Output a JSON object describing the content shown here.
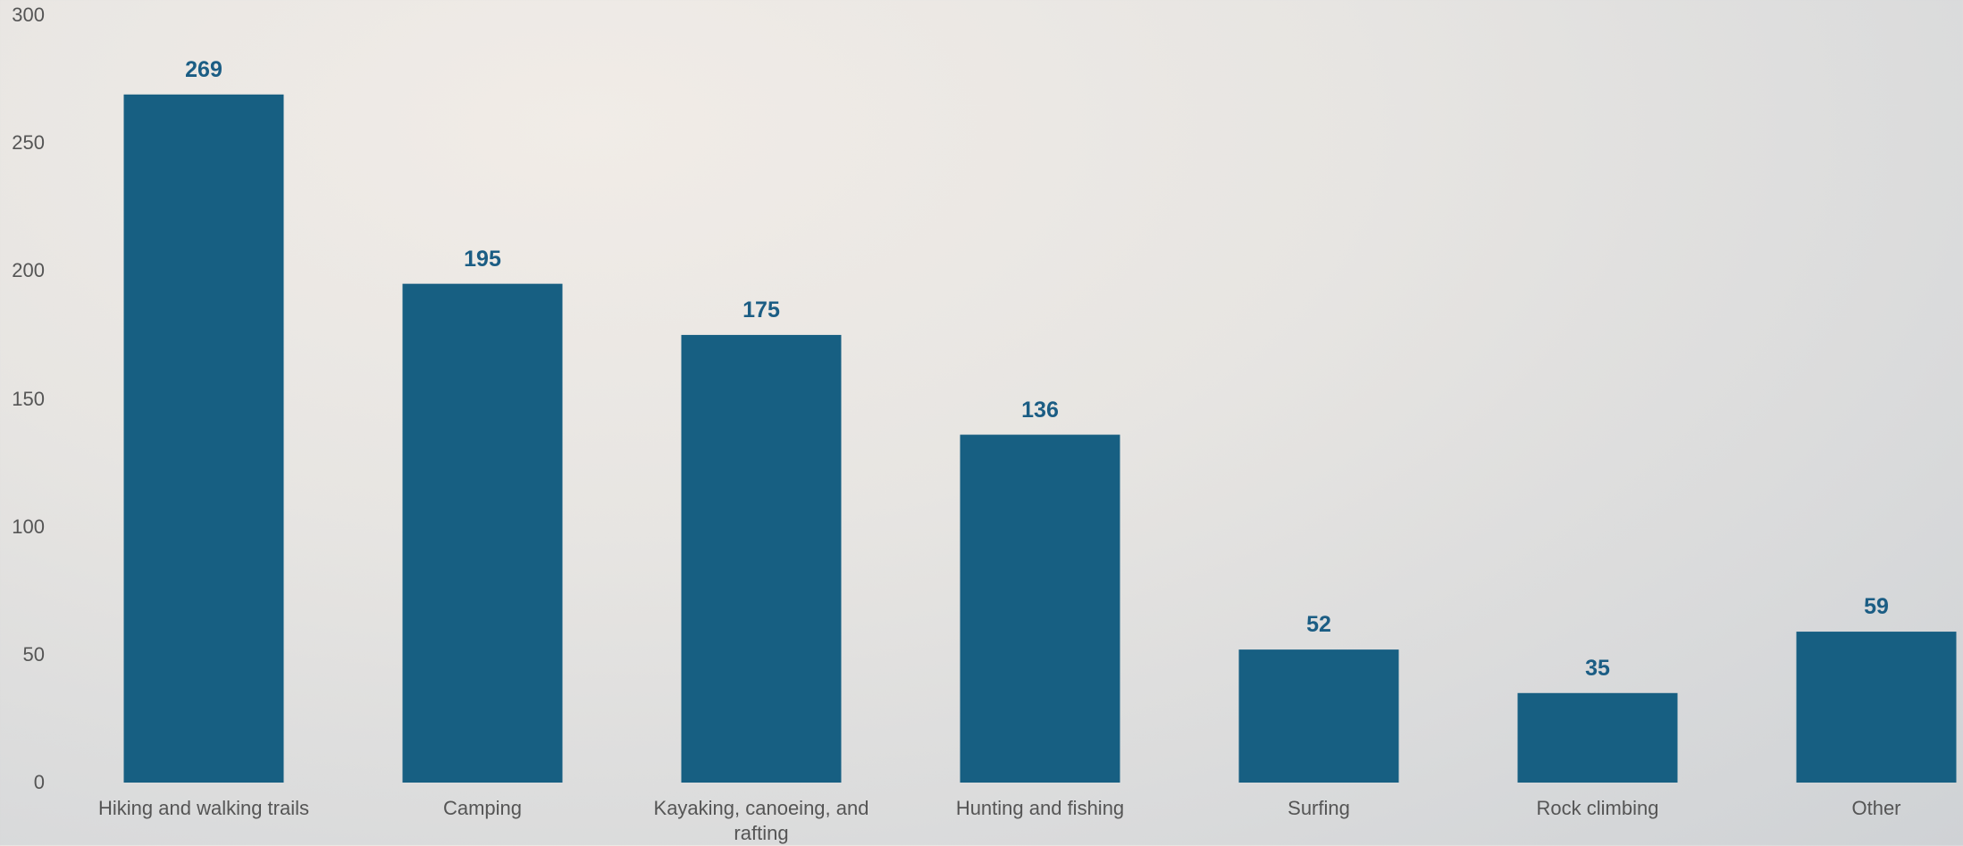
{
  "chart_data": {
    "type": "bar",
    "categories": [
      "Hiking and walking trails",
      "Camping",
      "Kayaking, canoeing, and rafting",
      "Hunting and fishing",
      "Surfing",
      "Rock climbing",
      "Other"
    ],
    "values": [
      269,
      195,
      175,
      136,
      52,
      35,
      59
    ],
    "color": "#175f82",
    "label_color": "#1b5d84",
    "ylim": [
      0,
      300
    ],
    "yticks": [
      0,
      50,
      100,
      150,
      200,
      250,
      300
    ],
    "grid": false
  }
}
